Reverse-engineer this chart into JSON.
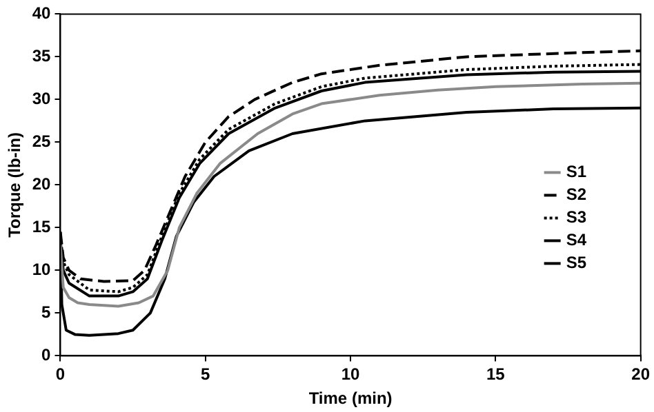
{
  "chart_data": {
    "type": "line",
    "xlabel": "Time (min)",
    "ylabel": "Torque (lb-in)",
    "xlim": [
      0,
      20
    ],
    "xticks": [
      0,
      5,
      10,
      15,
      20
    ],
    "ylim": [
      0,
      40
    ],
    "yticks": [
      0,
      5,
      10,
      15,
      20,
      25,
      30,
      35,
      40
    ],
    "grid": false,
    "legend": "right",
    "marker": "none",
    "series": [
      {
        "name": "S1",
        "color": "#8a8a8a",
        "line_style": "solid",
        "x": [
          0,
          0.1,
          0.3,
          0.6,
          1,
          2,
          2.7,
          3.2,
          3.7,
          4.1,
          4.7,
          5.5,
          6.8,
          8,
          9,
          11,
          13,
          15,
          18,
          20
        ],
        "values": [
          13,
          8,
          6.8,
          6.2,
          6,
          5.8,
          6.2,
          7,
          10,
          15,
          19,
          22.5,
          26,
          28.3,
          29.5,
          30.5,
          31.1,
          31.5,
          31.8,
          31.9
        ]
      },
      {
        "name": "S2",
        "color": "#000000",
        "line_style": "dashed",
        "x": [
          0,
          0.1,
          0.3,
          0.7,
          1.5,
          2.5,
          2.9,
          3.3,
          3.8,
          4.3,
          5,
          5.8,
          6.7,
          8,
          9,
          11,
          14,
          18,
          20
        ],
        "values": [
          14.5,
          11.5,
          10,
          9,
          8.7,
          8.8,
          10,
          13,
          17,
          21,
          25,
          28,
          30,
          32,
          33,
          34,
          35,
          35.5,
          35.7
        ]
      },
      {
        "name": "S3",
        "color": "#000000",
        "line_style": "dotted",
        "x": [
          0,
          0.1,
          0.3,
          1,
          2,
          2.5,
          3,
          3.5,
          4.1,
          4.8,
          5.8,
          7.4,
          9,
          10.5,
          14,
          17,
          20
        ],
        "values": [
          14,
          11,
          9.5,
          7.7,
          7.5,
          8,
          9.5,
          14,
          19,
          23,
          26.5,
          29.5,
          31.5,
          32.5,
          33.5,
          33.9,
          34.1
        ]
      },
      {
        "name": "S4",
        "color": "#000000",
        "line_style": "solid",
        "x": [
          0,
          0.1,
          0.3,
          1,
          2,
          2.5,
          3,
          3.5,
          4.1,
          4.8,
          5.8,
          7.4,
          9,
          10.5,
          14,
          17,
          20
        ],
        "values": [
          13.5,
          10,
          8.5,
          7,
          7,
          7.5,
          9,
          13.5,
          18.5,
          22.5,
          26,
          29,
          31,
          32,
          32.9,
          33.2,
          33.3
        ]
      },
      {
        "name": "S5",
        "color": "#000000",
        "line_style": "solid",
        "x": [
          0,
          0.05,
          0.2,
          0.5,
          1,
          2,
          2.5,
          3.1,
          3.6,
          4,
          4.6,
          5.3,
          6.5,
          8,
          10.5,
          14,
          17,
          20
        ],
        "values": [
          14.5,
          6,
          3,
          2.5,
          2.4,
          2.6,
          3,
          5,
          9,
          14,
          18,
          21,
          24,
          26,
          27.5,
          28.5,
          28.9,
          29
        ]
      }
    ]
  }
}
